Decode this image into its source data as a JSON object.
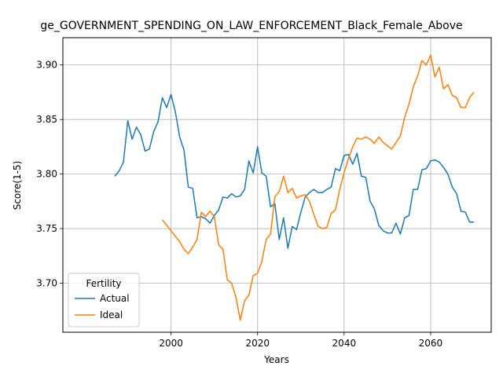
{
  "chart_data": {
    "type": "line",
    "title": "ge_GOVERNMENT_SPENDING_ON_LAW_ENFORCEMENT_Black_Female_Above",
    "xlabel": "Years",
    "ylabel": "Score(1-5)",
    "xlim": [
      1975,
      2074
    ],
    "ylim": [
      3.655,
      3.925
    ],
    "xticks": [
      2000,
      2020,
      2040,
      2060
    ],
    "yticks": [
      3.7,
      3.75,
      3.8,
      3.85,
      3.9
    ],
    "xtick_labels": [
      "2000",
      "2020",
      "2040",
      "2060"
    ],
    "ytick_labels": [
      "3.70",
      "3.75",
      "3.80",
      "3.85",
      "3.90"
    ],
    "grid": true,
    "legend": {
      "title": "Fertility",
      "placement": "lower-left"
    },
    "series": [
      {
        "name": "Actual",
        "color": "#1f77b4",
        "x": [
          1987,
          1988,
          1989,
          1990,
          1991,
          1992,
          1993,
          1994,
          1995,
          1996,
          1997,
          1998,
          1999,
          2000,
          2001,
          2002,
          2003,
          2004,
          2005,
          2006,
          2007,
          2008,
          2009,
          2010,
          2011,
          2012,
          2013,
          2014,
          2015,
          2016,
          2017,
          2018,
          2019,
          2020,
          2021,
          2022,
          2023,
          2024,
          2025,
          2026,
          2027,
          2028,
          2029,
          2030,
          2031,
          2032,
          2033,
          2034,
          2035,
          2036,
          2037,
          2038,
          2039,
          2040,
          2041,
          2042,
          2043,
          2044,
          2045,
          2046,
          2047,
          2048,
          2049,
          2050,
          2051,
          2052,
          2053,
          2054,
          2055,
          2056,
          2057,
          2058,
          2059,
          2060,
          2061,
          2062,
          2063,
          2064,
          2065,
          2066,
          2067,
          2068,
          2069,
          2070
        ],
        "values": [
          3.798,
          3.803,
          3.811,
          3.849,
          3.832,
          3.843,
          3.836,
          3.821,
          3.823,
          3.839,
          3.848,
          3.87,
          3.861,
          3.873,
          3.857,
          3.834,
          3.822,
          3.788,
          3.787,
          3.76,
          3.761,
          3.759,
          3.755,
          3.762,
          3.767,
          3.779,
          3.778,
          3.782,
          3.779,
          3.78,
          3.786,
          3.812,
          3.801,
          3.825,
          3.801,
          3.798,
          3.77,
          3.773,
          3.74,
          3.76,
          3.732,
          3.752,
          3.749,
          3.765,
          3.779,
          3.783,
          3.786,
          3.783,
          3.783,
          3.786,
          3.788,
          3.805,
          3.803,
          3.817,
          3.818,
          3.809,
          3.819,
          3.798,
          3.797,
          3.775,
          3.768,
          3.753,
          3.748,
          3.746,
          3.746,
          3.755,
          3.745,
          3.76,
          3.762,
          3.786,
          3.786,
          3.804,
          3.805,
          3.812,
          3.813,
          3.811,
          3.806,
          3.8,
          3.788,
          3.782,
          3.766,
          3.765,
          3.756,
          3.756
        ]
      },
      {
        "name": "Ideal",
        "color": "#ff7f0e",
        "x": [
          1998,
          1999,
          2000,
          2001,
          2002,
          2003,
          2004,
          2005,
          2006,
          2007,
          2008,
          2009,
          2010,
          2011,
          2012,
          2013,
          2014,
          2015,
          2016,
          2017,
          2018,
          2019,
          2020,
          2021,
          2022,
          2023,
          2024,
          2025,
          2026,
          2027,
          2028,
          2029,
          2030,
          2031,
          2032,
          2033,
          2034,
          2035,
          2036,
          2037,
          2038,
          2039,
          2040,
          2041,
          2042,
          2043,
          2044,
          2045,
          2046,
          2047,
          2048,
          2049,
          2050,
          2051,
          2052,
          2053,
          2054,
          2055,
          2056,
          2057,
          2058,
          2059,
          2060,
          2061,
          2062,
          2063,
          2064,
          2065,
          2066,
          2067,
          2068,
          2069,
          2070
        ],
        "values": [
          3.758,
          3.753,
          3.748,
          3.743,
          3.738,
          3.731,
          3.727,
          3.733,
          3.74,
          3.765,
          3.761,
          3.766,
          3.761,
          3.735,
          3.731,
          3.703,
          3.7,
          3.687,
          3.666,
          3.684,
          3.689,
          3.707,
          3.709,
          3.72,
          3.74,
          3.745,
          3.779,
          3.784,
          3.798,
          3.783,
          3.787,
          3.778,
          3.78,
          3.781,
          3.775,
          3.763,
          3.752,
          3.75,
          3.751,
          3.764,
          3.767,
          3.786,
          3.801,
          3.814,
          3.825,
          3.833,
          3.832,
          3.834,
          3.832,
          3.828,
          3.834,
          3.829,
          3.826,
          3.823,
          3.829,
          3.835,
          3.852,
          3.864,
          3.88,
          3.89,
          3.904,
          3.9,
          3.909,
          3.889,
          3.898,
          3.878,
          3.882,
          3.872,
          3.87,
          3.861,
          3.861,
          3.87,
          3.875
        ]
      }
    ]
  }
}
